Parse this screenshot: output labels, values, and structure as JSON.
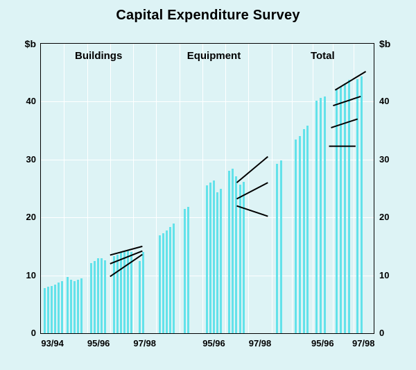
{
  "ui": {
    "y_unit_left": "$b",
    "y_unit_right": "$b",
    "colors": {
      "background": "#ddf3f5",
      "bar": "#63e2ea",
      "gridline": "#ffffff",
      "frame": "#000000",
      "estimate_line": "#000000",
      "text": "#000000"
    }
  },
  "chart_data": {
    "type": "bar",
    "title": "Capital Expenditure Survey",
    "ylabel": "$b",
    "ylim": [
      0,
      50
    ],
    "yticks": [
      0,
      10,
      20,
      30,
      40
    ],
    "grid": true,
    "panel_year_dividers": [
      0.2,
      0.4,
      0.6,
      0.8
    ],
    "panels": [
      {
        "label": "Buildings",
        "width": 0.3465,
        "x_ticks": [
          {
            "label": "93/94",
            "pos": 0.1
          },
          {
            "label": "95/96",
            "pos": 0.5
          },
          {
            "label": "97/98",
            "pos": 0.9
          }
        ],
        "bars": [
          {
            "x": 0.025,
            "v": 7.8
          },
          {
            "x": 0.055,
            "v": 8.0
          },
          {
            "x": 0.085,
            "v": 8.1
          },
          {
            "x": 0.115,
            "v": 8.4
          },
          {
            "x": 0.145,
            "v": 8.7
          },
          {
            "x": 0.175,
            "v": 9.0
          },
          {
            "x": 0.225,
            "v": 9.7
          },
          {
            "x": 0.255,
            "v": 9.2
          },
          {
            "x": 0.285,
            "v": 9.0
          },
          {
            "x": 0.315,
            "v": 9.2
          },
          {
            "x": 0.345,
            "v": 9.5
          },
          {
            "x": 0.425,
            "v": 12.1
          },
          {
            "x": 0.455,
            "v": 12.5
          },
          {
            "x": 0.485,
            "v": 12.9
          },
          {
            "x": 0.515,
            "v": 13.0
          },
          {
            "x": 0.545,
            "v": 12.6
          },
          {
            "x": 0.625,
            "v": 13.3
          },
          {
            "x": 0.655,
            "v": 13.6
          },
          {
            "x": 0.685,
            "v": 13.9
          },
          {
            "x": 0.715,
            "v": 14.2
          },
          {
            "x": 0.745,
            "v": 14.4
          },
          {
            "x": 0.775,
            "v": 14.0
          },
          {
            "x": 0.845,
            "v": 12.5
          },
          {
            "x": 0.875,
            "v": 14.0
          }
        ],
        "lines": [
          [
            0.6,
            13.5,
            0.88,
            15.0
          ],
          [
            0.6,
            12.0,
            0.88,
            14.2
          ],
          [
            0.6,
            9.8,
            0.88,
            13.6
          ]
        ]
      },
      {
        "label": "Equipment",
        "width": 0.3465,
        "x_ticks": [
          {
            "label": "95/96",
            "pos": 0.5
          },
          {
            "label": "97/98",
            "pos": 0.9
          }
        ],
        "bars": [
          {
            "x": 0.025,
            "v": 16.9
          },
          {
            "x": 0.055,
            "v": 17.3
          },
          {
            "x": 0.085,
            "v": 17.8
          },
          {
            "x": 0.115,
            "v": 18.4
          },
          {
            "x": 0.145,
            "v": 18.9
          },
          {
            "x": 0.24,
            "v": 21.5
          },
          {
            "x": 0.27,
            "v": 21.8
          },
          {
            "x": 0.43,
            "v": 25.5
          },
          {
            "x": 0.46,
            "v": 26.0
          },
          {
            "x": 0.49,
            "v": 26.4
          },
          {
            "x": 0.52,
            "v": 24.4
          },
          {
            "x": 0.55,
            "v": 24.9
          },
          {
            "x": 0.625,
            "v": 28.0
          },
          {
            "x": 0.655,
            "v": 28.4
          },
          {
            "x": 0.685,
            "v": 27.1
          },
          {
            "x": 0.72,
            "v": 25.7
          },
          {
            "x": 0.75,
            "v": 26.1
          }
        ],
        "lines": [
          [
            0.7,
            26.0,
            0.97,
            30.5
          ],
          [
            0.7,
            23.2,
            0.97,
            26.0
          ],
          [
            0.7,
            22.0,
            0.97,
            20.2
          ]
        ]
      },
      {
        "label": "Total",
        "width": 0.307,
        "x_ticks": [
          {
            "label": "95/96",
            "pos": 0.5
          },
          {
            "label": "97/98",
            "pos": 0.9
          }
        ],
        "bars": [
          {
            "x": 0.045,
            "v": 29.3
          },
          {
            "x": 0.085,
            "v": 29.9
          },
          {
            "x": 0.225,
            "v": 33.4
          },
          {
            "x": 0.265,
            "v": 34.1
          },
          {
            "x": 0.305,
            "v": 35.3
          },
          {
            "x": 0.345,
            "v": 35.9
          },
          {
            "x": 0.43,
            "v": 40.2
          },
          {
            "x": 0.47,
            "v": 40.6
          },
          {
            "x": 0.51,
            "v": 40.9
          },
          {
            "x": 0.63,
            "v": 42.1
          },
          {
            "x": 0.67,
            "v": 42.6
          },
          {
            "x": 0.71,
            "v": 43.2
          },
          {
            "x": 0.75,
            "v": 43.8
          },
          {
            "x": 0.83,
            "v": 43.9
          },
          {
            "x": 0.87,
            "v": 44.4
          }
        ],
        "lines": [
          [
            0.56,
            32.3,
            0.82,
            32.3
          ],
          [
            0.58,
            35.5,
            0.84,
            37.0
          ],
          [
            0.6,
            39.3,
            0.87,
            40.9
          ],
          [
            0.62,
            42.0,
            0.92,
            45.2
          ]
        ]
      }
    ]
  }
}
